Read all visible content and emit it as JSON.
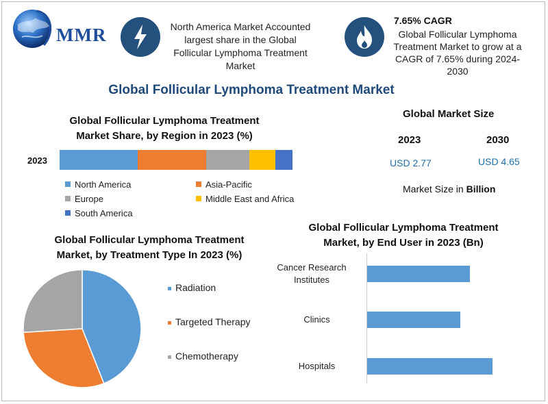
{
  "brand": {
    "logo_text": "MMR"
  },
  "callouts": {
    "region": "North America Market Accounted largest share in the Global Follicular Lymphoma Treatment Market",
    "cagr_title": "7.65% CAGR",
    "cagr_text": "Global Follicular Lymphoma Treatment Market to grow at a CAGR of 7.65% during 2024-2030"
  },
  "main_title": "Global Follicular Lymphoma Treatment Market",
  "colors": {
    "north_america": "#5b9bd5",
    "asia_pacific": "#ed7d31",
    "europe": "#a5a5a5",
    "mea": "#ffc000",
    "south_america": "#4472c4",
    "dark_blue": "#24507d"
  },
  "market_size": {
    "title": "Global Market Size",
    "year1": "2023",
    "year2": "2030",
    "value1": "USD 2.77",
    "value2": "USD 4.65",
    "unit_prefix": "Market Size in ",
    "unit_bold": "Billion"
  },
  "chart_data": [
    {
      "type": "bar",
      "stacked": true,
      "orientation": "horizontal",
      "title": "Global Follicular Lymphoma Treatment Market Share, by Region in 2023 (%)",
      "categories": [
        "2023"
      ],
      "series": [
        {
          "name": "North America",
          "values": [
            33.5
          ]
        },
        {
          "name": "Asia-Pacific",
          "values": [
            29.4
          ]
        },
        {
          "name": "Europe",
          "values": [
            18.5
          ]
        },
        {
          "name": "Middle East and Africa",
          "values": [
            11.2
          ]
        },
        {
          "name": "South America",
          "values": [
            7.4
          ]
        }
      ],
      "legend": "bottom"
    },
    {
      "type": "pie",
      "title": "Global Follicular Lymphoma Treatment Market, by Treatment Type In 2023 (%)",
      "labels": [
        "Radiation",
        "Targeted Therapy",
        "Chemotherapy"
      ],
      "values": [
        44,
        30,
        26
      ],
      "legend": "right"
    },
    {
      "type": "bar",
      "orientation": "horizontal",
      "title": "Global Follicular Lymphoma Treatment Market, by End User in 2023 (Bn)",
      "categories": [
        "Cancer Research Institutes",
        "Clinics",
        "Hospitals"
      ],
      "values": [
        0.82,
        0.74,
        1.0
      ],
      "xlim": [
        0,
        1.2
      ]
    }
  ]
}
